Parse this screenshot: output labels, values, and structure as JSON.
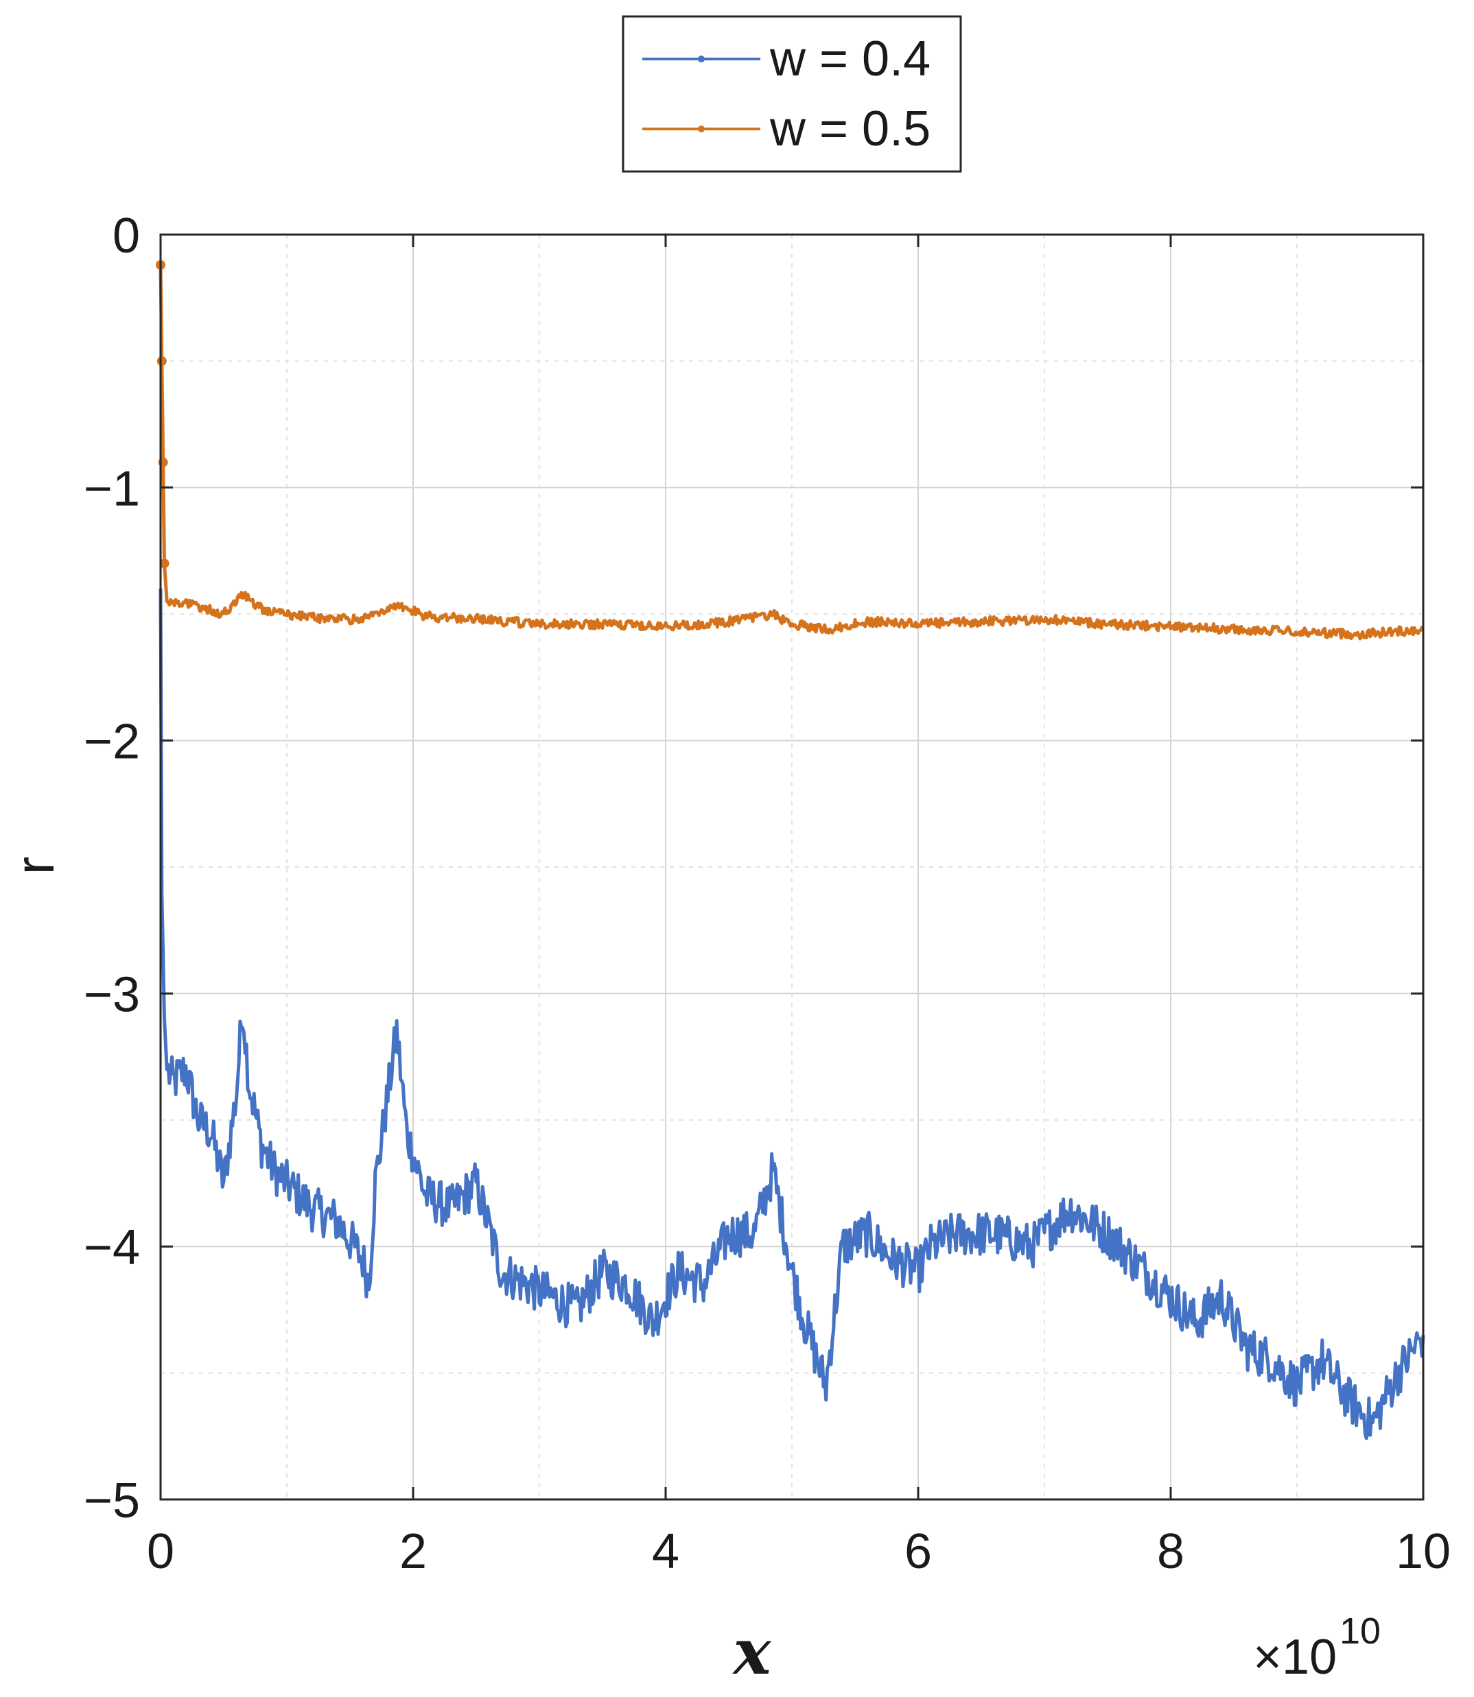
{
  "chart_data": {
    "type": "line",
    "xlabel": "x",
    "ylabel": "r",
    "x_exponent_label": "×10",
    "x_exponent_power": "10",
    "xlim": [
      0,
      10
    ],
    "ylim": [
      -5,
      0
    ],
    "x_ticks": [
      "0",
      "2",
      "4",
      "6",
      "8",
      "10"
    ],
    "y_ticks": [
      "0",
      "−1",
      "−2",
      "−3",
      "−4",
      "−5"
    ],
    "grid": true,
    "minor_grid": true,
    "legend_position": "top-center-outside",
    "series": [
      {
        "name": "w = 0.4",
        "color": "#4472c4",
        "x": [
          0,
          0.01,
          0.03,
          0.05,
          0.1,
          0.2,
          0.3,
          0.4,
          0.5,
          0.6,
          0.65,
          0.7,
          0.8,
          0.9,
          1.0,
          1.2,
          1.4,
          1.6,
          1.65,
          1.7,
          1.8,
          1.87,
          1.95,
          2.1,
          2.3,
          2.5,
          2.7,
          2.9,
          3.1,
          3.3,
          3.5,
          3.7,
          3.9,
          4.1,
          4.3,
          4.5,
          4.7,
          4.85,
          5.0,
          5.1,
          5.2,
          5.27,
          5.4,
          5.6,
          5.8,
          6.0,
          6.1,
          6.3,
          6.6,
          6.9,
          7.2,
          7.5,
          7.8,
          8.0,
          8.2,
          8.4,
          8.6,
          8.8,
          9.0,
          9.2,
          9.4,
          9.6,
          9.8,
          10.0
        ],
        "y": [
          -1.4,
          -2.6,
          -3.1,
          -3.3,
          -3.35,
          -3.3,
          -3.5,
          -3.55,
          -3.75,
          -3.4,
          -3.05,
          -3.35,
          -3.6,
          -3.7,
          -3.75,
          -3.85,
          -3.9,
          -4.05,
          -4.15,
          -3.75,
          -3.4,
          -3.15,
          -3.55,
          -3.8,
          -3.85,
          -3.75,
          -4.1,
          -4.15,
          -4.2,
          -4.25,
          -4.1,
          -4.15,
          -4.3,
          -4.1,
          -4.15,
          -3.95,
          -3.95,
          -3.7,
          -4.1,
          -4.3,
          -4.45,
          -4.55,
          -4.0,
          -3.95,
          -4.05,
          -4.1,
          -4.0,
          -3.95,
          -3.95,
          -4.0,
          -3.85,
          -3.95,
          -4.1,
          -4.2,
          -4.3,
          -4.2,
          -4.4,
          -4.45,
          -4.55,
          -4.45,
          -4.6,
          -4.7,
          -4.5,
          -4.35
        ]
      },
      {
        "name": "w = 0.5",
        "color": "#d4731c",
        "x": [
          0,
          0.01,
          0.02,
          0.03,
          0.05,
          0.1,
          0.3,
          0.5,
          0.65,
          0.8,
          1.0,
          1.3,
          1.6,
          1.87,
          2.1,
          2.5,
          3.0,
          3.5,
          4.0,
          4.5,
          4.85,
          5.0,
          5.3,
          5.6,
          6.0,
          6.5,
          7.0,
          7.5,
          8.0,
          8.5,
          9.0,
          9.5,
          10.0
        ],
        "y": [
          -0.12,
          -0.5,
          -0.9,
          -1.3,
          -1.45,
          -1.45,
          -1.47,
          -1.5,
          -1.42,
          -1.48,
          -1.5,
          -1.52,
          -1.52,
          -1.46,
          -1.51,
          -1.52,
          -1.54,
          -1.54,
          -1.55,
          -1.53,
          -1.5,
          -1.54,
          -1.56,
          -1.53,
          -1.54,
          -1.53,
          -1.52,
          -1.54,
          -1.55,
          -1.56,
          -1.57,
          -1.58,
          -1.56
        ]
      }
    ]
  }
}
